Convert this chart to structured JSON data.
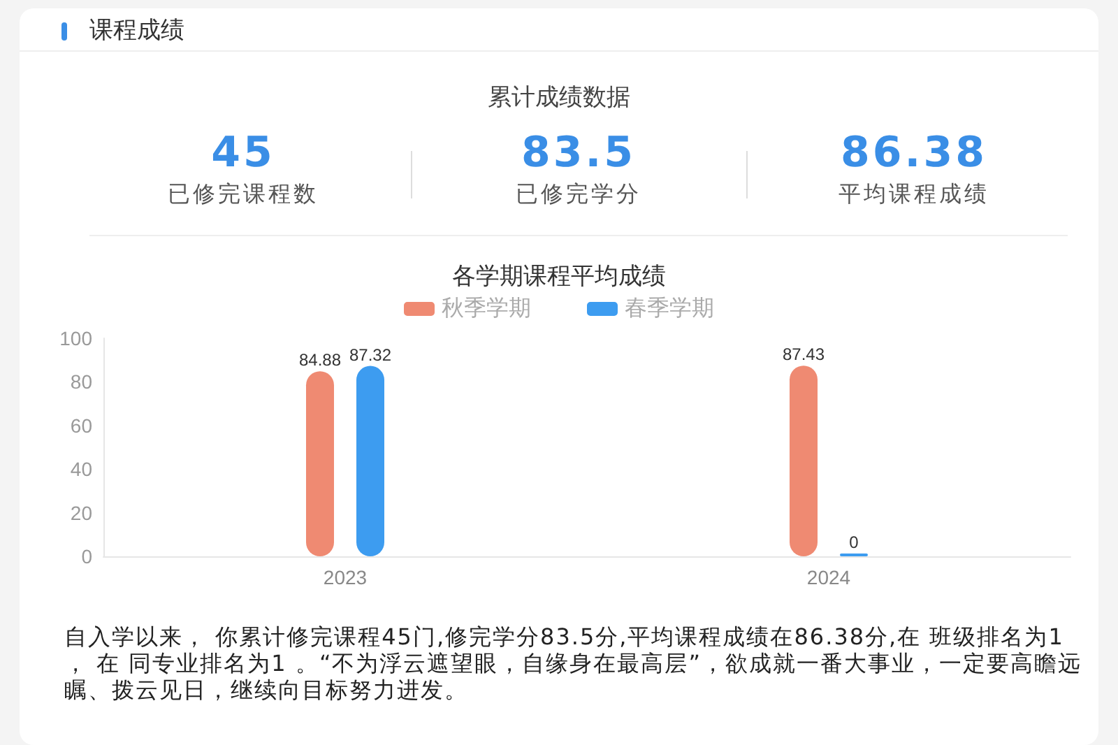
{
  "chart_data": [
    {
      "type": "other",
      "title": "课程成绩",
      "subtitle": "累计成绩数据",
      "categories": [
        "已修完课程数",
        "已修完学分",
        "平均课程成绩"
      ],
      "values": [
        45,
        83.5,
        86.38
      ],
      "color": "#3a8ee6",
      "data_labels": true
    },
    {
      "type": "bar",
      "title": "各学期课程平均成绩",
      "categories": [
        "2023",
        "2024"
      ],
      "series": [
        {
          "name": "秋季学期",
          "color": "#ef8a72",
          "values": [
            84.88,
            87.43
          ]
        },
        {
          "name": "春季学期",
          "color": "#3d9cf0",
          "values": [
            87.32,
            0
          ]
        }
      ],
      "ylim": [
        0,
        100
      ],
      "yticks": [
        0,
        20,
        40,
        60,
        80,
        100
      ],
      "grid": false,
      "legend": "top",
      "data_labels": true,
      "annotations": [
        "自入学以来， 你累计修完课程45门,修完学分83.5分,平均课程成绩在86.38分,在 班级排名为1 ， 在 同专业排名为1 。“不为浮云遮望眼，自缘身在最高层”，欲成就一番大事业，一定要高瞻远瞩、拨云见日，继续向目标努力进发。"
      ]
    }
  ]
}
